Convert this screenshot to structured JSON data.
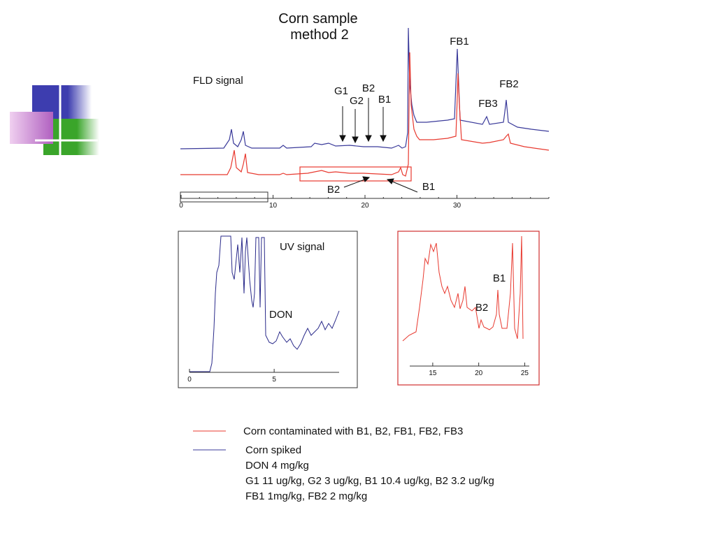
{
  "title": [
    "Corn sample",
    "method 2"
  ],
  "fld": {
    "label": "FLD signal",
    "arrow_labels": [
      "G1",
      "G2",
      "B2",
      "B1"
    ],
    "peak_labels": [
      "FB1",
      "FB3",
      "FB2"
    ],
    "zoom_labels": [
      "B2",
      "B1"
    ],
    "xlim": [
      0,
      40
    ],
    "xticks": [
      0,
      10,
      20,
      30
    ]
  },
  "uv": {
    "label": "UV signal",
    "peak_label": "DON",
    "xlim": [
      0,
      9
    ],
    "xticks": [
      0,
      5
    ]
  },
  "zoom": {
    "peak_labels": [
      "B2",
      "B1"
    ],
    "xlim": [
      12.5,
      25.5
    ],
    "xticks": [
      15,
      20,
      25
    ]
  },
  "legend": [
    {
      "color": "#e8392f",
      "lines": [
        "Corn contaminated with B1, B2, FB1, FB2, FB3"
      ]
    },
    {
      "color": "#3a3a9a",
      "lines": [
        "Corn spiked",
        "DON 4 mg/kg",
        "G1 11 ug/kg, G2 3 ug/kg, B1 10.4 ug/kg, B2 3.2 ug/kg",
        "FB1  1mg/kg, FB2  2 mg/kg"
      ]
    }
  ]
}
